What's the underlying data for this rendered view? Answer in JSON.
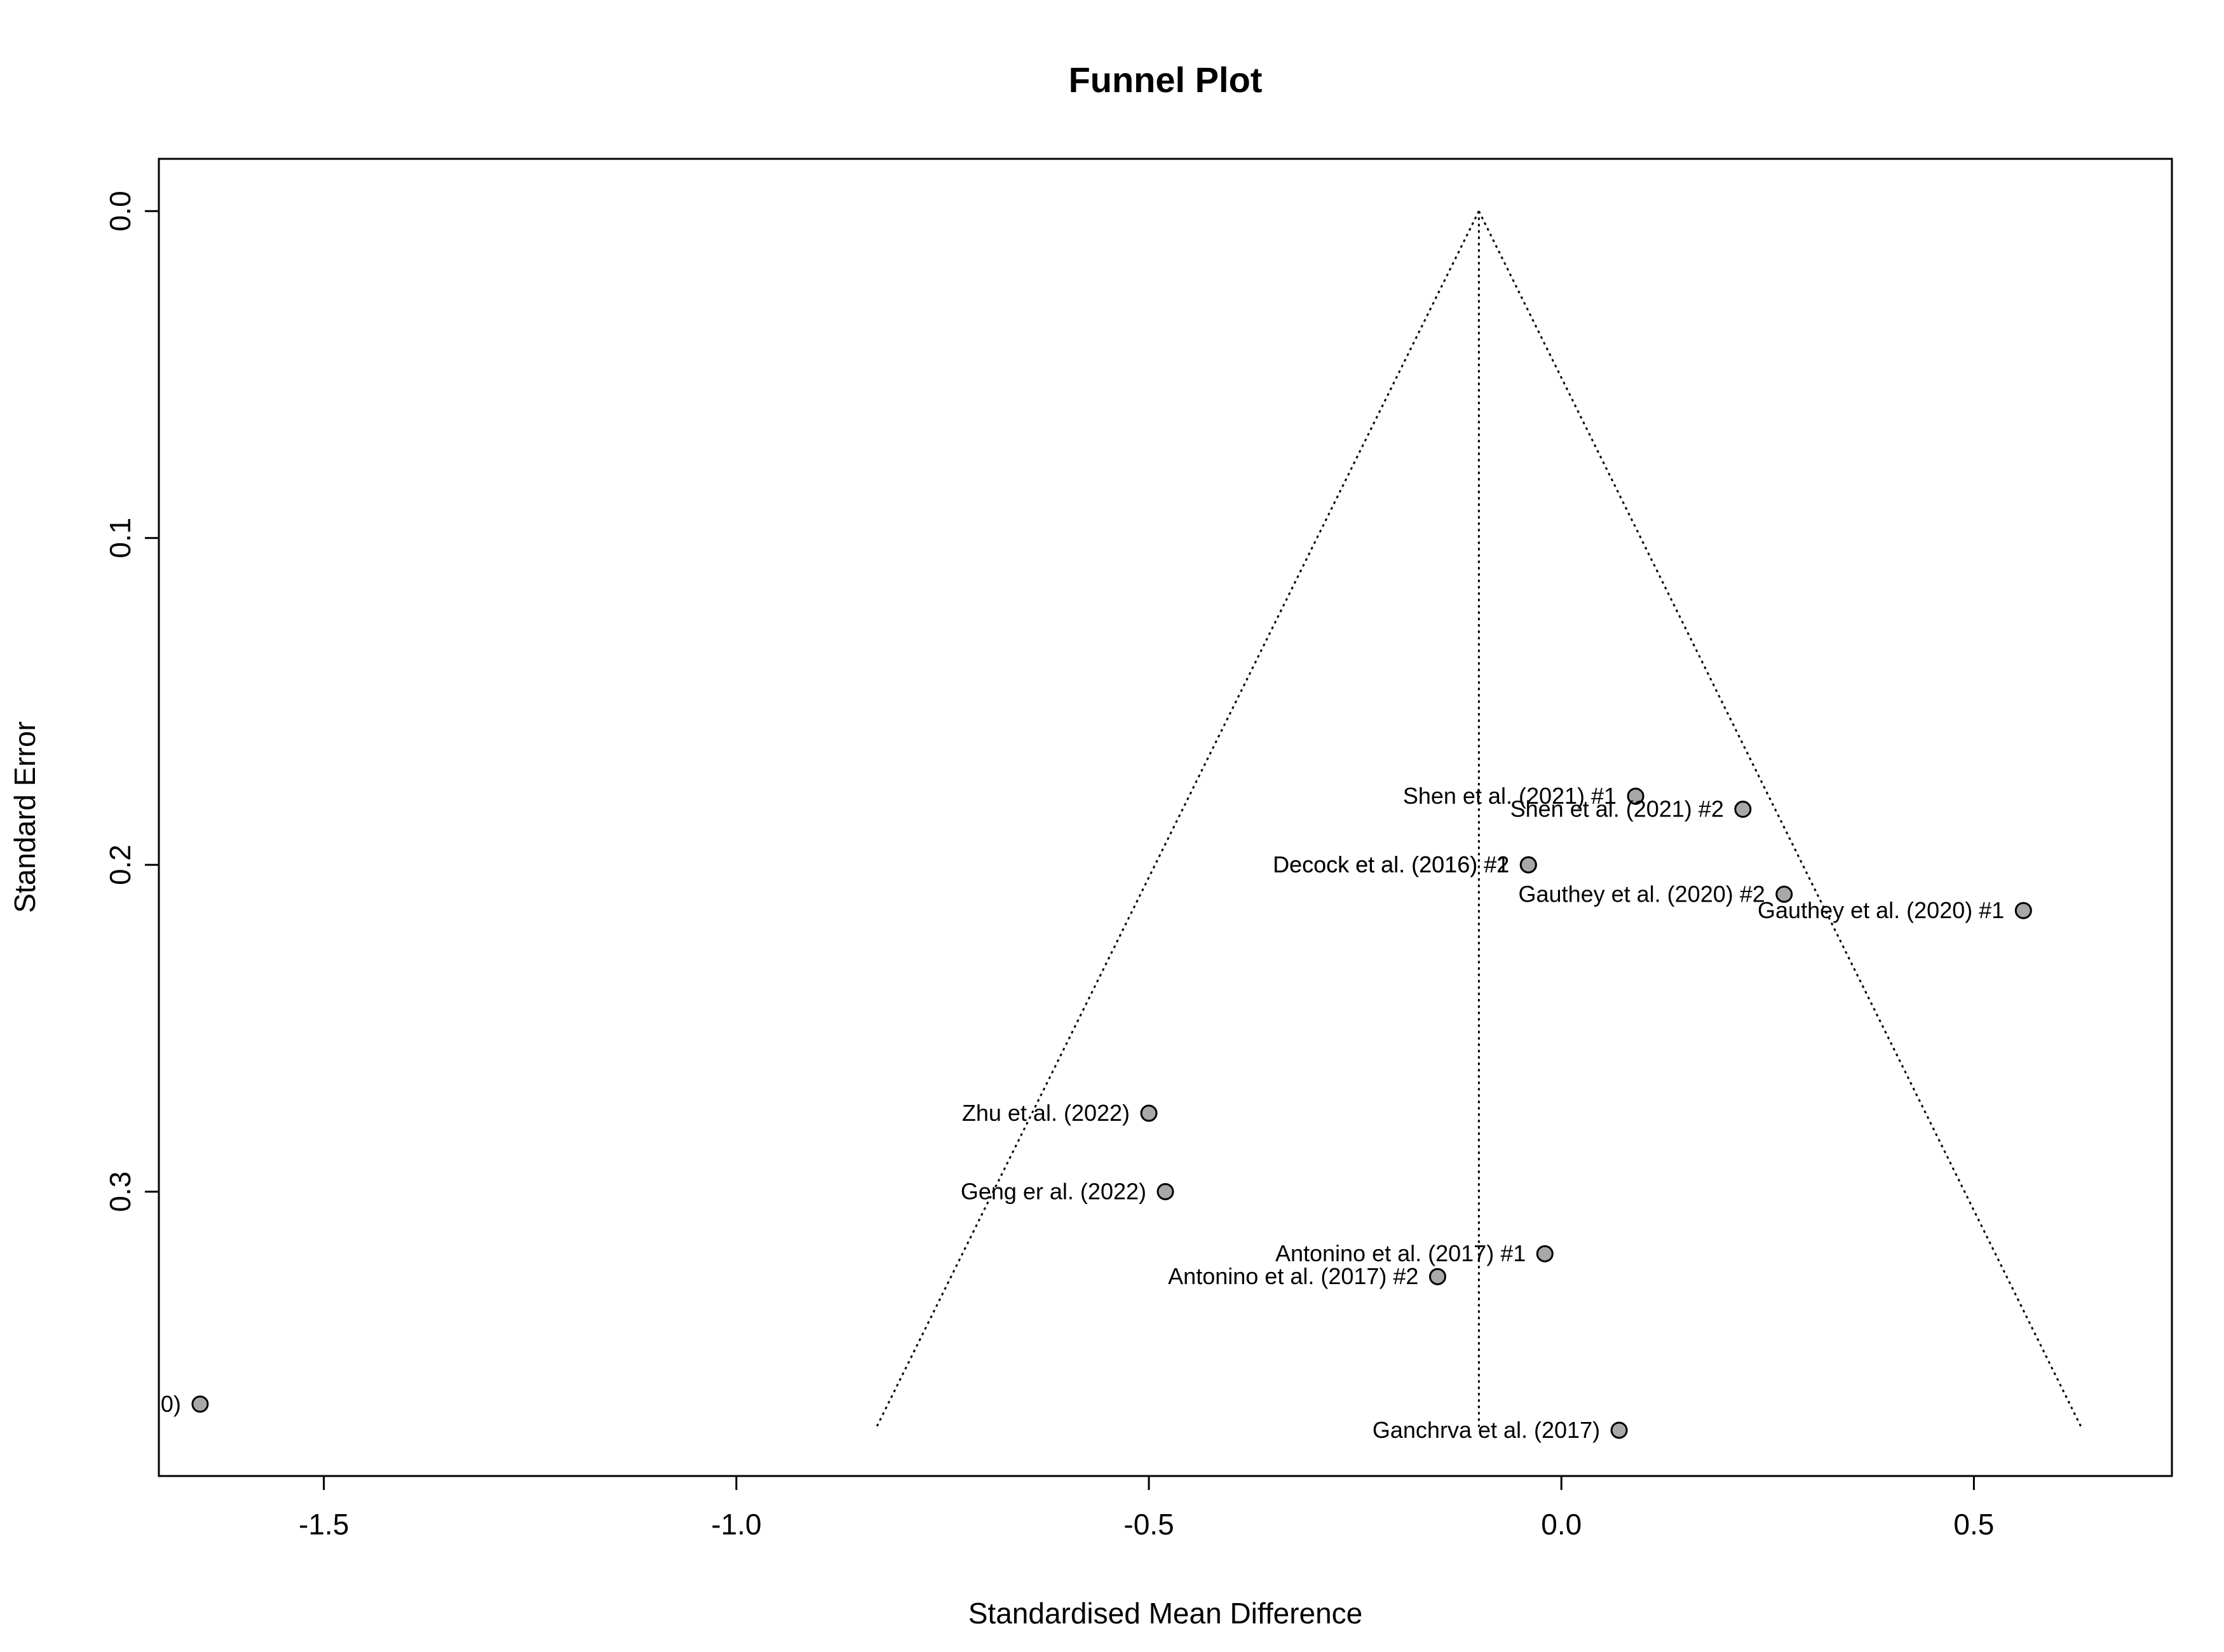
{
  "chart_data": {
    "type": "scatter",
    "title": "Funnel Plot",
    "xlabel": "Standardised Mean Difference",
    "ylabel": "Standard Error",
    "xlim": [
      -1.7,
      0.74
    ],
    "ylim": [
      -0.016,
      0.387
    ],
    "y_reversed": true,
    "x_ticks": [
      -1.5,
      -1.0,
      -0.5,
      0.0,
      0.5
    ],
    "x_tick_labels": [
      "-1.5",
      "-1.0",
      "-0.5",
      "0.0",
      "0.5"
    ],
    "y_ticks": [
      0.0,
      0.1,
      0.2,
      0.3
    ],
    "y_tick_labels": [
      "0.0",
      "0.1",
      "0.2",
      "0.3"
    ],
    "grid": false,
    "legend": "none",
    "point_fill": "#a8a8a8",
    "funnel": {
      "center": -0.1,
      "apex_se": 0.0,
      "base_se": 0.372,
      "left_base_x": -0.83,
      "right_base_x": 0.63
    },
    "points": [
      {
        "label": "Shen et al. (2021) #1",
        "x": 0.09,
        "y": 0.179
      },
      {
        "label": "Shen et al. (2021) #2",
        "x": 0.22,
        "y": 0.183
      },
      {
        "label": "Decock et al. (2016) #1",
        "x": -0.04,
        "y": 0.2
      },
      {
        "label": "Decock et al. (2016) #2",
        "x": -0.04,
        "y": 0.2
      },
      {
        "label": "Gauthey et al. (2020) #2",
        "x": 0.27,
        "y": 0.209
      },
      {
        "label": "Gauthey et al. (2020) #1",
        "x": 0.56,
        "y": 0.214
      },
      {
        "label": "Zhu et al. (2022)",
        "x": -0.5,
        "y": 0.276
      },
      {
        "label": "Geng er al. (2022)",
        "x": -0.48,
        "y": 0.3
      },
      {
        "label": "Antonino et al. (2017) #1",
        "x": -0.02,
        "y": 0.319
      },
      {
        "label": "Antonino et al. (2017) #2",
        "x": -0.15,
        "y": 0.326
      },
      {
        "label": "0)",
        "x": -1.65,
        "y": 0.365
      },
      {
        "label": "Ganchrva et al. (2017)",
        "x": 0.07,
        "y": 0.373
      }
    ]
  }
}
